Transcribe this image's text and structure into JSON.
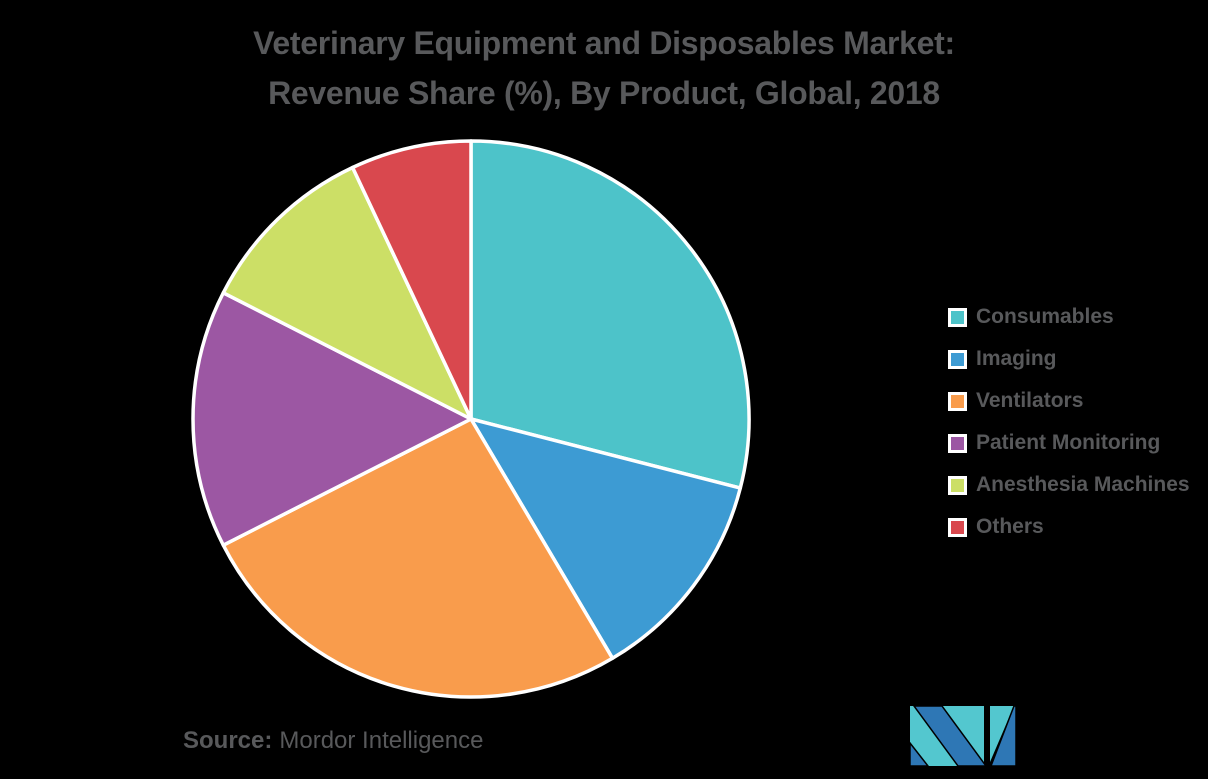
{
  "title": {
    "line1": "Veterinary Equipment and Disposables Market:",
    "line2": "Revenue Share (%), By Product, Global, 2018"
  },
  "legend": {
    "items": [
      {
        "label": "Consumables",
        "color": "#4DC3C9"
      },
      {
        "label": "Imaging",
        "color": "#3D9BD3"
      },
      {
        "label": "Ventilators",
        "color": "#F99C4C"
      },
      {
        "label": "Patient Monitoring",
        "color": "#9C57A3"
      },
      {
        "label": "Anesthesia Machines",
        "color": "#CCDF66"
      },
      {
        "label": "Others",
        "color": "#D9484E"
      }
    ]
  },
  "chart_data": {
    "type": "pie",
    "title": "Veterinary Equipment and Disposables Market: Revenue Share (%), By Product, Global, 2018",
    "categories": [
      "Consumables",
      "Imaging",
      "Ventilators",
      "Patient Monitoring",
      "Anesthesia Machines",
      "Others"
    ],
    "values": [
      29,
      12.5,
      26,
      15,
      10.5,
      7
    ],
    "unit": "%",
    "colors": [
      "#4DC3C9",
      "#3D9BD3",
      "#F99C4C",
      "#9C57A3",
      "#CCDF66",
      "#D9484E"
    ],
    "start_angle_deg": 0,
    "direction": "clockwise",
    "legend_position": "right",
    "slice_border_color": "#FFFFFF",
    "data_labels_shown": false
  },
  "source": {
    "label": "Source:",
    "name": "Mordor Intelligence"
  },
  "colors": {
    "background": "#000000",
    "text": "#58595B",
    "logo_teal": "#53C7CF",
    "logo_blue": "#2E77B5"
  },
  "logo": {
    "name": "mordor-intelligence-logo"
  }
}
